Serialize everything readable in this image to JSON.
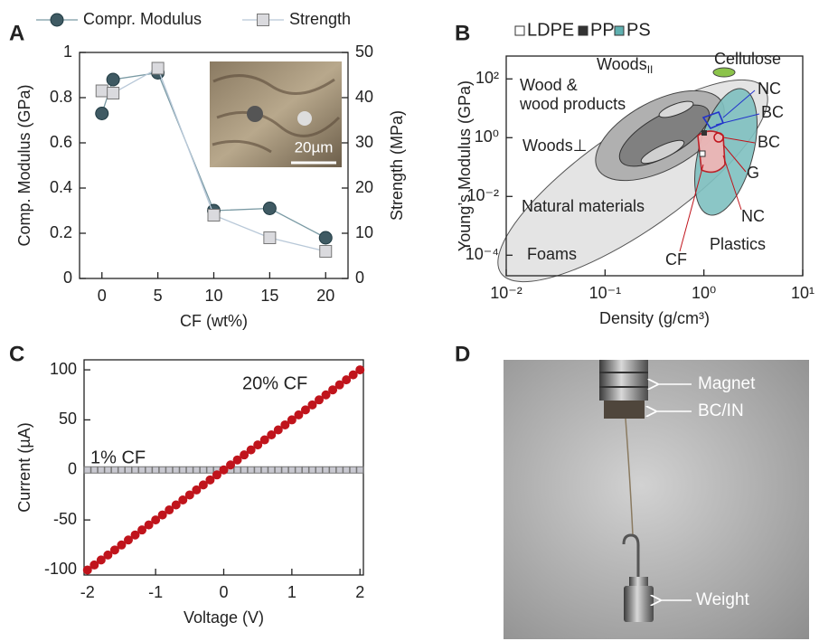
{
  "panels": {
    "a": "A",
    "b": "B",
    "c": "C",
    "d": "D"
  },
  "chart_data": [
    {
      "type": "scatter-line",
      "x": [
        0,
        1,
        5,
        10,
        15,
        20
      ],
      "xlabel": "CF (wt%)",
      "ylabel": "Comp. Modulus (GPa)",
      "y2label": "Strength (MPa)",
      "xlim": [
        -2,
        22
      ],
      "xticks": [
        0,
        5,
        10,
        15,
        20
      ],
      "ylim": [
        0,
        1
      ],
      "yticks": [
        0,
        0.2,
        0.4,
        0.6,
        0.8,
        1
      ],
      "y2lim": [
        0,
        50
      ],
      "y2ticks": [
        0,
        10,
        20,
        30,
        40,
        50
      ],
      "series": [
        {
          "name": "Compr. Modulus",
          "color": "#3f5a63",
          "marker": "circle",
          "values": [
            0.73,
            0.88,
            0.91,
            0.3,
            0.31,
            0.18
          ]
        },
        {
          "name": "Strength",
          "color": "#dadade",
          "marker": "square",
          "axis": "y2",
          "values": [
            41.5,
            41,
            46.5,
            14,
            9,
            6
          ]
        }
      ],
      "inset_label": "20µm"
    },
    {
      "type": "ashby",
      "xlabel": "Density (g/cm³)",
      "ylabel": "Young’s Modulus (GPa)",
      "log_x": true,
      "log_y": true,
      "xlim": [
        0.01,
        10
      ],
      "xticks": [
        {
          "value": 0.01,
          "label": "10⁻²"
        },
        {
          "value": 0.1,
          "label": "10⁻¹"
        },
        {
          "value": 1,
          "label": "10⁰"
        },
        {
          "value": 10,
          "label": "10¹"
        }
      ],
      "ylim": [
        2e-05,
        600
      ],
      "yticks": [
        {
          "value": 0.0001,
          "label": "10⁻⁴"
        },
        {
          "value": 0.01,
          "label": "10⁻²"
        },
        {
          "value": 1,
          "label": "10⁰"
        },
        {
          "value": 100,
          "label": "10²"
        }
      ],
      "legend": [
        {
          "name": "LDPE",
          "color": "#ffffff"
        },
        {
          "name": "PP",
          "color": "#333333"
        },
        {
          "name": "PS",
          "color": "#5fb0b0"
        }
      ],
      "annotations": [
        {
          "text": "Woods",
          "sub": "II",
          "color": "#222222"
        },
        {
          "text": "Wood &",
          "color": "#222222"
        },
        {
          "text": "wood products",
          "color": "#222222"
        },
        {
          "text": "Woods⊥",
          "color": "#222222"
        },
        {
          "text": "Natural materials",
          "color": "#222222"
        },
        {
          "text": "Foams",
          "color": "#222222"
        },
        {
          "text": "Plastics",
          "color": "#222222"
        },
        {
          "text": "Cellulose",
          "color": "#222222"
        },
        {
          "text": "NC",
          "color": "#2233cc"
        },
        {
          "text": "BC",
          "color": "#2233cc"
        },
        {
          "text": "BC",
          "color": "#c0141c"
        },
        {
          "text": "G",
          "color": "#c0141c"
        },
        {
          "text": "NC",
          "color": "#c0141c"
        },
        {
          "text": "CF",
          "color": "#c0141c"
        }
      ]
    },
    {
      "type": "scatter",
      "x": [
        -2,
        -1.9,
        -1.8,
        -1.7,
        -1.6,
        -1.5,
        -1.4,
        -1.3,
        -1.2,
        -1.1,
        -1,
        -0.9,
        -0.8,
        -0.7,
        -0.6,
        -0.5,
        -0.4,
        -0.3,
        -0.2,
        -0.1,
        0,
        0.1,
        0.2,
        0.3,
        0.4,
        0.5,
        0.6,
        0.7,
        0.8,
        0.9,
        1,
        1.1,
        1.2,
        1.3,
        1.4,
        1.5,
        1.6,
        1.7,
        1.8,
        1.9,
        2
      ],
      "xlabel": "Voltage (V)",
      "ylabel": "Current (µA)",
      "xlim": [
        -2.05,
        2.05
      ],
      "xticks": [
        -2,
        -1,
        0,
        1,
        2
      ],
      "ylim": [
        -105,
        110
      ],
      "yticks": [
        -100,
        -50,
        0,
        50,
        100
      ],
      "series": [
        {
          "name": "20% CF",
          "color": "#c0141c",
          "marker": "circle",
          "values": [
            -100,
            -95,
            -90,
            -85,
            -80,
            -75,
            -70,
            -65,
            -60,
            -55,
            -50,
            -45,
            -40,
            -35,
            -30,
            -25,
            -20,
            -15,
            -10,
            -5,
            0,
            5,
            10,
            15,
            20,
            25,
            30,
            35,
            40,
            45,
            50,
            55,
            60,
            65,
            70,
            75,
            80,
            85,
            90,
            95,
            100
          ]
        },
        {
          "name": "1% CF",
          "color": "#c8c8d0",
          "marker": "square",
          "values": [
            0,
            0,
            0,
            0,
            0,
            0,
            0,
            0,
            0,
            0,
            0,
            0,
            0,
            0,
            0,
            0,
            0,
            0,
            0,
            0,
            0,
            0,
            0,
            0,
            0,
            0,
            0,
            0,
            0,
            0,
            0,
            0,
            0,
            0,
            0,
            0,
            0,
            0,
            0,
            0,
            0
          ]
        }
      ]
    }
  ],
  "photo": {
    "labels": [
      "Magnet",
      "BC/IN",
      "Weight"
    ]
  }
}
